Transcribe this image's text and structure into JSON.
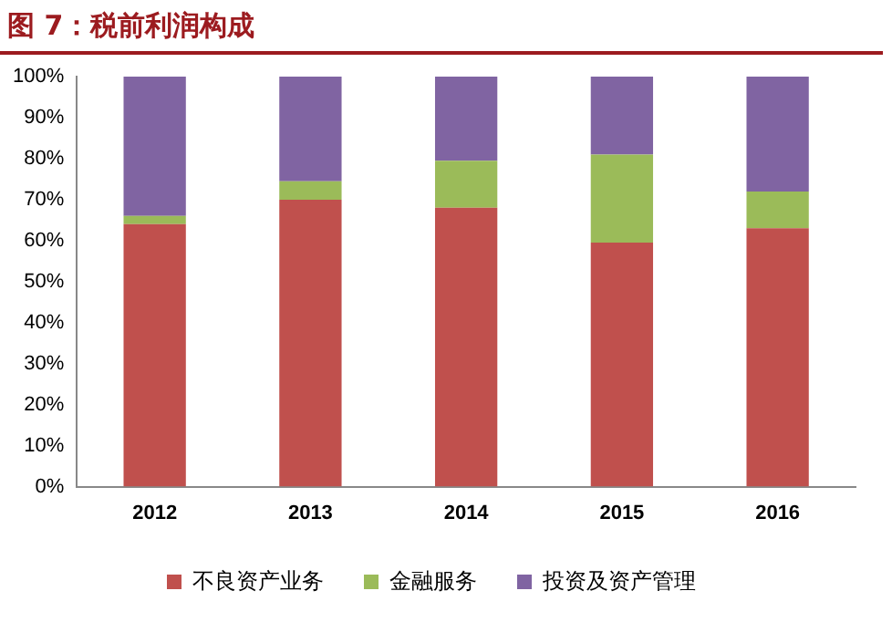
{
  "chart_data": {
    "type": "bar",
    "title": "图 7：税前利润构成",
    "stacked": true,
    "categories": [
      "2012",
      "2013",
      "2014",
      "2015",
      "2016"
    ],
    "series": [
      {
        "name": "不良资产业务",
        "color": "#c0504d",
        "values": [
          64,
          70,
          68,
          59.5,
          63
        ]
      },
      {
        "name": "金融服务",
        "color": "#9bbb59",
        "values": [
          2,
          4.5,
          11.5,
          21.5,
          9
        ]
      },
      {
        "name": "投资及资产管理",
        "color": "#8064a2",
        "values": [
          34,
          25.5,
          20.5,
          19,
          28
        ]
      }
    ],
    "ylim": [
      0,
      100
    ],
    "yticks": [
      {
        "value": 0,
        "label": "0%"
      },
      {
        "value": 10,
        "label": "10%"
      },
      {
        "value": 20,
        "label": "20%"
      },
      {
        "value": 30,
        "label": "30%"
      },
      {
        "value": 40,
        "label": "40%"
      },
      {
        "value": 50,
        "label": "50%"
      },
      {
        "value": 60,
        "label": "60%"
      },
      {
        "value": 70,
        "label": "70%"
      },
      {
        "value": 80,
        "label": "80%"
      },
      {
        "value": 90,
        "label": "90%"
      },
      {
        "value": 100,
        "label": "100%"
      }
    ],
    "grid": false,
    "legend": "bottom"
  }
}
